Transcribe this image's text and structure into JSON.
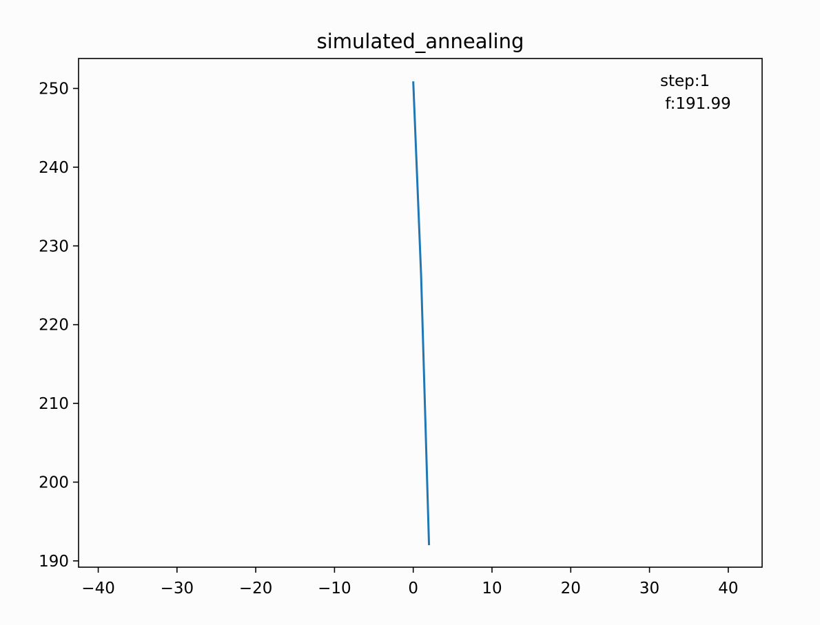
{
  "chart_data": {
    "type": "line",
    "title": "simulated_annealing",
    "xlabel": "",
    "ylabel": "",
    "xlim": [
      -42.5,
      44.3
    ],
    "ylim": [
      189.2,
      253.8
    ],
    "xticks": [
      -40,
      -30,
      -20,
      -10,
      0,
      10,
      20,
      30,
      40
    ],
    "xtick_labels": [
      "−40",
      "−30",
      "−20",
      "−10",
      "0",
      "10",
      "20",
      "30",
      "40"
    ],
    "yticks": [
      190,
      200,
      210,
      220,
      230,
      240,
      250
    ],
    "ytick_labels": [
      "190",
      "200",
      "210",
      "220",
      "230",
      "240",
      "250"
    ],
    "grid": false,
    "series": [
      {
        "color": "#1f77b4",
        "x": [
          0.0,
          1.0,
          2.0
        ],
        "y": [
          250.9,
          226.3,
          191.99
        ]
      }
    ],
    "annotation": {
      "lines": [
        "step:1",
        " f:191.99"
      ]
    }
  }
}
